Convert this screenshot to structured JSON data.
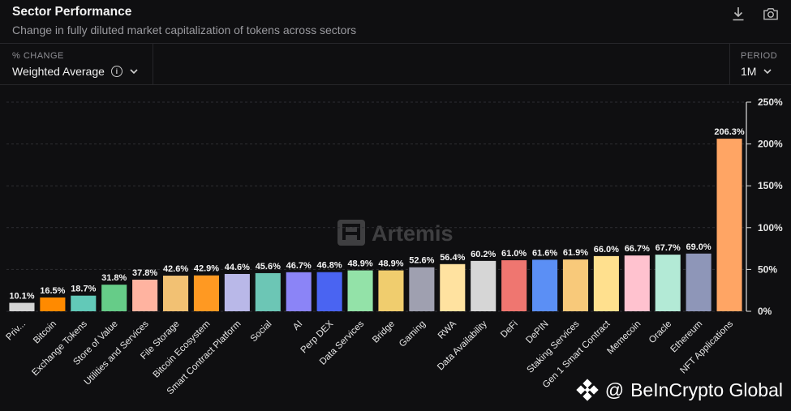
{
  "header": {
    "title": "Sector Performance",
    "subtitle": "Change in fully diluted market capitalization of tokens across sectors"
  },
  "toolbar": {
    "download_icon": "download-icon",
    "screenshot_icon": "camera-icon"
  },
  "controls": {
    "metric_label": "% CHANGE",
    "metric_value": "Weighted Average",
    "period_label": "PERIOD",
    "period_value": "1M"
  },
  "brand_watermark": "Artemis",
  "credit": {
    "at": "@",
    "name": "BeInCrypto Global"
  },
  "chart_data": {
    "type": "bar",
    "categories": [
      "Priv...",
      "Bitcoin",
      "Exchange Tokens",
      "Store of Value",
      "Utilities and Services",
      "File Storage",
      "Bitcoin Ecosystem",
      "Smart Contract Platform",
      "Social",
      "AI",
      "Perp DEX",
      "Data Services",
      "Bridge",
      "Gaming",
      "RWA",
      "Data Availability",
      "DeFi",
      "DePIN",
      "Staking Services",
      "Gen 1 Smart Contract",
      "Memecoin",
      "Oracle",
      "Ethereum",
      "NFT Applications"
    ],
    "values": [
      10.1,
      16.5,
      18.7,
      31.8,
      37.8,
      42.6,
      42.9,
      44.6,
      45.6,
      46.7,
      46.8,
      48.9,
      48.9,
      52.6,
      56.4,
      60.2,
      61.0,
      61.6,
      61.9,
      66.0,
      66.7,
      67.7,
      69.0,
      206.3
    ],
    "value_labels": [
      "10.1%",
      "16.5%",
      "18.7%",
      "31.8%",
      "37.8%",
      "42.6%",
      "42.9%",
      "44.6%",
      "45.6%",
      "46.7%",
      "46.8%",
      "48.9%",
      "48.9%",
      "52.6%",
      "56.4%",
      "60.2%",
      "61.0%",
      "61.6%",
      "61.9%",
      "66.0%",
      "66.7%",
      "67.7%",
      "69.0%",
      "206.3%"
    ],
    "colors": [
      "#d4d4d4",
      "#ff8a00",
      "#62c9b8",
      "#66cc88",
      "#ffb3a0",
      "#f2c173",
      "#ff9922",
      "#b9b8e8",
      "#6cc6b5",
      "#8b84f7",
      "#4a64f2",
      "#93e2a8",
      "#f0cd6e",
      "#9fa0b0",
      "#ffe2a0",
      "#d6d6d6",
      "#ef7670",
      "#5b8ff5",
      "#f8c97a",
      "#ffe08e",
      "#ffc2cf",
      "#b3ead6",
      "#8e96b8",
      "#ffa564"
    ],
    "yticks": [
      0,
      50,
      100,
      150,
      200,
      250
    ],
    "ytick_labels": [
      "0%",
      "50%",
      "100%",
      "150%",
      "200%",
      "250%"
    ],
    "ylim": [
      0,
      250
    ],
    "grid": true,
    "y_axis_position": "right"
  }
}
